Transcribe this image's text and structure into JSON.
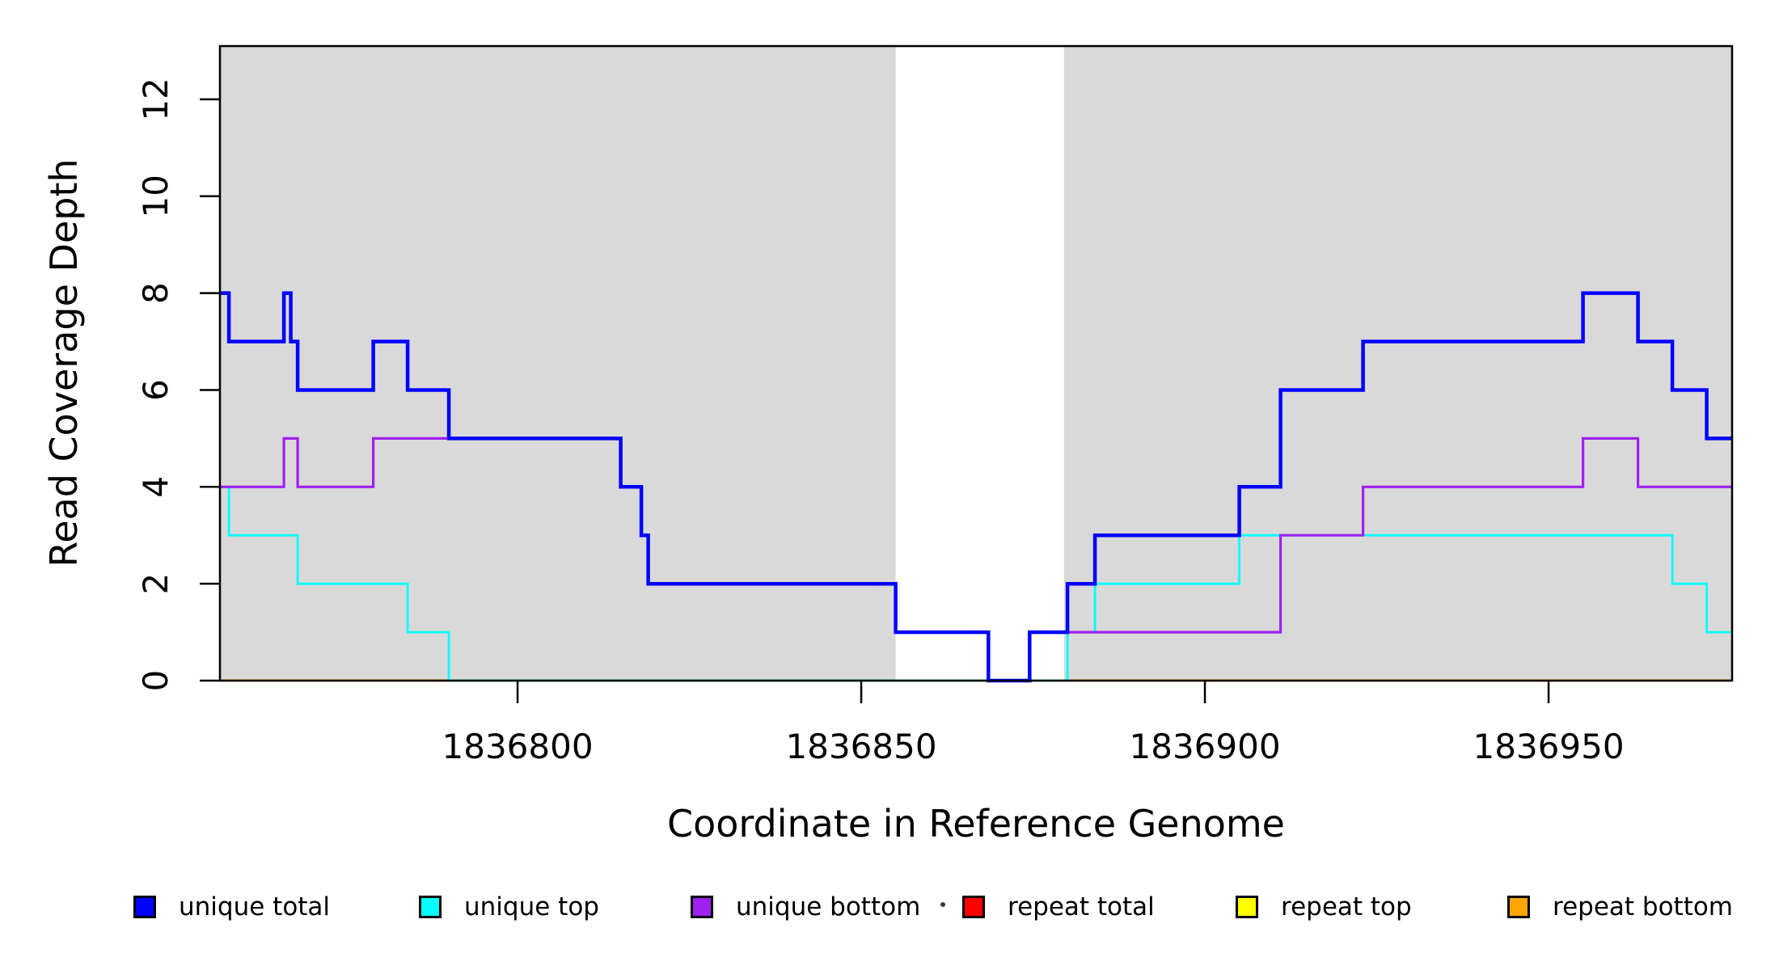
{
  "figure": {
    "x_axis_title": "Coordinate in Reference Genome",
    "y_axis_title": "Read Coverage Depth"
  },
  "legend": {
    "items": [
      {
        "label": "unique total",
        "color": "#0000FF"
      },
      {
        "label": "unique top",
        "color": "#00FFFF"
      },
      {
        "label": "unique bottom",
        "color": "#A020F0"
      },
      {
        "label": "repeat total",
        "color": "#FF0000"
      },
      {
        "label": "repeat top",
        "color": "#FFFF00"
      },
      {
        "label": "repeat bottom",
        "color": "#FFA500"
      }
    ],
    "has_stray_dot_artifact": true
  },
  "chart_data": {
    "type": "line",
    "subtype": "step-post",
    "title": "",
    "xlabel": "Coordinate in Reference Genome",
    "ylabel": "Read Coverage Depth",
    "xlim": [
      1836756.7,
      1836976.7
    ],
    "ylim": [
      0,
      13.1
    ],
    "x_ticks": [
      1836800,
      1836850,
      1836900,
      1836950
    ],
    "y_ticks": [
      0,
      2,
      4,
      6,
      8,
      10,
      12
    ],
    "grid": false,
    "legend_position": "bottom",
    "shaded_color": "#D9D9D9",
    "shaded_regions": [
      [
        1836756.7,
        1836855
      ],
      [
        1836879.5,
        1836976.7
      ]
    ],
    "axis_color": "#000000",
    "series": [
      {
        "name": "unique total",
        "color": "#0000FF",
        "lw": 4.5,
        "points": [
          [
            1836756.7,
            8
          ],
          [
            1836758,
            7
          ],
          [
            1836766,
            8
          ],
          [
            1836767,
            7
          ],
          [
            1836768,
            6
          ],
          [
            1836779,
            7
          ],
          [
            1836784,
            6
          ],
          [
            1836790,
            5
          ],
          [
            1836815,
            4
          ],
          [
            1836818,
            3
          ],
          [
            1836819,
            2
          ],
          [
            1836855,
            1
          ],
          [
            1836868.5,
            0
          ],
          [
            1836874.5,
            1
          ],
          [
            1836880,
            2
          ],
          [
            1836884,
            3
          ],
          [
            1836905,
            4
          ],
          [
            1836911,
            6
          ],
          [
            1836923,
            7
          ],
          [
            1836955,
            8
          ],
          [
            1836963,
            7
          ],
          [
            1836968,
            6
          ],
          [
            1836973,
            5
          ]
        ]
      },
      {
        "name": "unique top",
        "color": "#00FFFF",
        "lw": 2.8,
        "points": [
          [
            1836756.7,
            4
          ],
          [
            1836758,
            3
          ],
          [
            1836768,
            2
          ],
          [
            1836784,
            1
          ],
          [
            1836790,
            0
          ],
          [
            1836880,
            1
          ],
          [
            1836884,
            2
          ],
          [
            1836905,
            3
          ],
          [
            1836968,
            2
          ],
          [
            1836973,
            1
          ]
        ]
      },
      {
        "name": "unique bottom",
        "color": "#A020F0",
        "lw": 3.2,
        "points": [
          [
            1836756.7,
            4
          ],
          [
            1836766,
            5
          ],
          [
            1836768,
            4
          ],
          [
            1836779,
            5
          ],
          [
            1836815,
            4
          ],
          [
            1836818,
            3
          ],
          [
            1836819,
            2
          ],
          [
            1836855,
            1
          ],
          [
            1836868.5,
            0
          ],
          [
            1836874.5,
            1
          ],
          [
            1836911,
            3
          ],
          [
            1836923,
            4
          ],
          [
            1836955,
            5
          ],
          [
            1836963,
            4
          ]
        ]
      },
      {
        "name": "repeat total",
        "color": "#FF0000",
        "lw": 2.5,
        "points": [
          [
            1836756.7,
            0
          ]
        ]
      },
      {
        "name": "repeat top",
        "color": "#FFFF00",
        "lw": 2.5,
        "points": [
          [
            1836756.7,
            0
          ]
        ]
      },
      {
        "name": "repeat bottom",
        "color": "#FFA500",
        "lw": 3,
        "points": [
          [
            1836756.7,
            0
          ]
        ]
      }
    ],
    "draw_order": [
      3,
      4,
      5,
      1,
      2,
      0
    ]
  }
}
